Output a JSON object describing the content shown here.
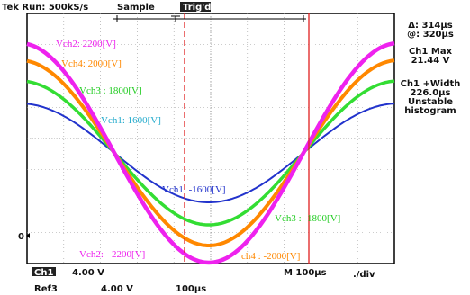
{
  "header": {
    "status": "Tek Run: 500kS/s",
    "mode": "Sample",
    "trigger": "Trig'd"
  },
  "side_panel": {
    "lines": [
      "Δ: 314µs",
      "@: 320µs",
      "Ch1 Max",
      "21.44 V",
      "Ch1 +Width",
      "226.0µs",
      "Unstable",
      "histogram"
    ]
  },
  "annotations": {
    "ch2_pos": "Vch2: 2200[V]",
    "ch4_pos": "Vch4: 2000[V]",
    "ch3_pos": "Vch3 : 1800[V]",
    "ch1_pos": "Vch1: 1600[V]",
    "ch1_neg": "Vch1: -1600[V]",
    "ch3_neg": "Vch3 : -1800[V]",
    "ch2_neg": "Vch2: - 2200[V]",
    "ch4_neg": "ch4 : -2000[V]"
  },
  "footer": {
    "channel": "Ch1",
    "scale": "4.00 V",
    "timebase": "M 100µs",
    "div": "./div",
    "ref": "Ref3",
    "ref_scale": "4.00 V",
    "ref_time": "100µs",
    "ground": "0"
  }
}
